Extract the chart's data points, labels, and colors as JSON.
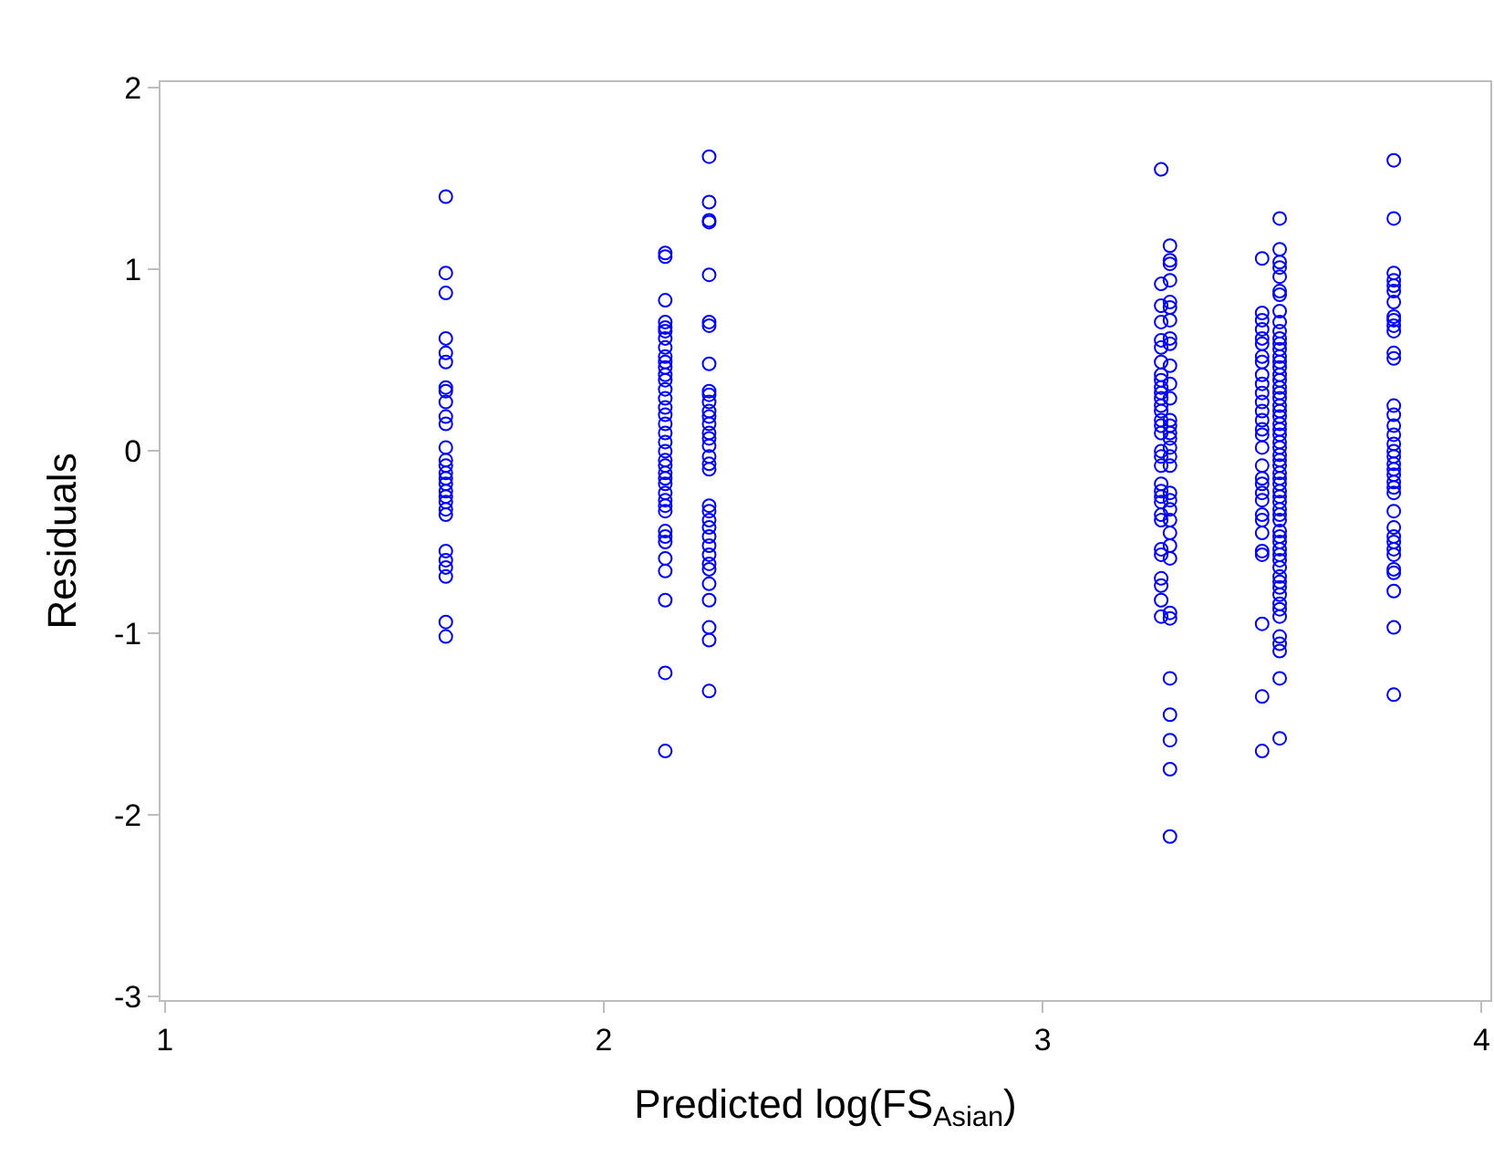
{
  "chart_data": {
    "type": "scatter",
    "xlabel": "Predicted log(FS$_{Asian}$)",
    "ylabel": "Residuals",
    "marker": "circle",
    "grid": false,
    "xlim": [
      0.99,
      4.02
    ],
    "xticks": [
      1,
      2,
      3,
      4
    ],
    "ylim": [
      -3.02,
      2.03
    ],
    "yticks": [
      -3,
      -2,
      -1,
      0,
      1,
      2
    ],
    "series": [
      {
        "color": "#0000ff",
        "x": [
          1.64,
          1.64,
          1.64,
          1.64,
          1.64,
          1.64,
          1.64,
          1.64,
          1.64,
          1.64,
          1.64,
          1.64,
          1.64,
          1.64,
          1.64,
          1.64,
          1.64,
          1.64,
          1.64,
          1.64,
          1.64,
          1.64,
          1.64,
          1.64,
          1.64,
          1.64,
          1.64,
          1.64,
          2.14,
          2.14,
          2.14,
          2.14,
          2.14,
          2.14,
          2.14,
          2.14,
          2.14,
          2.14,
          2.14,
          2.14,
          2.14,
          2.14,
          2.14,
          2.14,
          2.14,
          2.14,
          2.14,
          2.14,
          2.14,
          2.14,
          2.14,
          2.14,
          2.14,
          2.14,
          2.14,
          2.14,
          2.14,
          2.14,
          2.14,
          2.14,
          2.14,
          2.14,
          2.14,
          2.14,
          2.14,
          2.14,
          2.24,
          2.24,
          2.24,
          2.24,
          2.24,
          2.24,
          2.24,
          2.24,
          2.24,
          2.24,
          2.24,
          2.24,
          2.24,
          2.24,
          2.24,
          2.24,
          2.24,
          2.24,
          2.24,
          2.24,
          2.24,
          2.24,
          2.24,
          2.24,
          2.24,
          2.24,
          2.24,
          2.24,
          2.24,
          2.24,
          2.24,
          2.24,
          2.24,
          2.24,
          3.27,
          3.27,
          3.27,
          3.27,
          3.27,
          3.27,
          3.27,
          3.27,
          3.27,
          3.27,
          3.27,
          3.27,
          3.27,
          3.27,
          3.27,
          3.27,
          3.27,
          3.27,
          3.27,
          3.27,
          3.27,
          3.27,
          3.27,
          3.27,
          3.27,
          3.27,
          3.27,
          3.27,
          3.27,
          3.27,
          3.27,
          3.27,
          3.29,
          3.29,
          3.29,
          3.29,
          3.29,
          3.29,
          3.29,
          3.29,
          3.29,
          3.29,
          3.29,
          3.29,
          3.29,
          3.29,
          3.29,
          3.29,
          3.29,
          3.29,
          3.29,
          3.29,
          3.29,
          3.29,
          3.29,
          3.29,
          3.29,
          3.29,
          3.29,
          3.29,
          3.29,
          3.29,
          3.29,
          3.29,
          3.29,
          3.5,
          3.5,
          3.5,
          3.5,
          3.5,
          3.5,
          3.5,
          3.5,
          3.5,
          3.5,
          3.5,
          3.5,
          3.5,
          3.5,
          3.5,
          3.5,
          3.5,
          3.5,
          3.5,
          3.5,
          3.5,
          3.5,
          3.5,
          3.5,
          3.5,
          3.5,
          3.5,
          3.5,
          3.5,
          3.5,
          3.54,
          3.54,
          3.54,
          3.54,
          3.54,
          3.54,
          3.54,
          3.54,
          3.54,
          3.54,
          3.54,
          3.54,
          3.54,
          3.54,
          3.54,
          3.54,
          3.54,
          3.54,
          3.54,
          3.54,
          3.54,
          3.54,
          3.54,
          3.54,
          3.54,
          3.54,
          3.54,
          3.54,
          3.54,
          3.54,
          3.54,
          3.54,
          3.54,
          3.54,
          3.54,
          3.54,
          3.54,
          3.54,
          3.54,
          3.54,
          3.54,
          3.54,
          3.54,
          3.54,
          3.54,
          3.54,
          3.54,
          3.54,
          3.54,
          3.54,
          3.54,
          3.54,
          3.54,
          3.54,
          3.54,
          3.54,
          3.54,
          3.54,
          3.54,
          3.54,
          3.8,
          3.8,
          3.8,
          3.8,
          3.8,
          3.8,
          3.8,
          3.8,
          3.8,
          3.8,
          3.8,
          3.8,
          3.8,
          3.8,
          3.8,
          3.8,
          3.8,
          3.8,
          3.8,
          3.8,
          3.8,
          3.8,
          3.8,
          3.8,
          3.8,
          3.8,
          3.8,
          3.8,
          3.8,
          3.8,
          3.8,
          3.8,
          3.8,
          3.8,
          3.8,
          3.8,
          3.8
        ],
        "values": [
          1.4,
          0.98,
          0.87,
          0.62,
          0.54,
          0.49,
          0.35,
          0.33,
          0.27,
          0.19,
          0.15,
          0.02,
          -0.05,
          -0.08,
          -0.12,
          -0.15,
          -0.18,
          -0.22,
          -0.25,
          -0.28,
          -0.32,
          -0.35,
          -0.55,
          -0.6,
          -0.64,
          -0.69,
          -0.94,
          -1.02,
          1.09,
          1.07,
          0.83,
          0.71,
          0.68,
          0.66,
          0.62,
          0.57,
          0.52,
          0.49,
          0.46,
          0.42,
          0.39,
          0.34,
          0.29,
          0.24,
          0.2,
          0.15,
          0.1,
          0.05,
          0.0,
          -0.05,
          -0.08,
          -0.12,
          -0.15,
          -0.18,
          -0.23,
          -0.27,
          -0.3,
          -0.33,
          -0.44,
          -0.47,
          -0.5,
          -0.59,
          -0.66,
          -0.82,
          -1.22,
          -1.65,
          1.62,
          1.37,
          1.27,
          1.26,
          0.97,
          0.71,
          0.69,
          0.48,
          0.33,
          0.31,
          0.27,
          0.22,
          0.19,
          0.15,
          0.1,
          0.07,
          0.03,
          -0.03,
          -0.07,
          -0.1,
          -0.3,
          -0.33,
          -0.38,
          -0.42,
          -0.47,
          -0.52,
          -0.57,
          -0.62,
          -0.65,
          -0.73,
          -0.82,
          -0.97,
          -1.04,
          -1.32,
          1.55,
          0.92,
          0.8,
          0.71,
          0.61,
          0.57,
          0.49,
          0.42,
          0.39,
          0.35,
          0.32,
          0.29,
          0.25,
          0.22,
          0.17,
          0.14,
          0.1,
          0.0,
          -0.03,
          -0.08,
          -0.18,
          -0.22,
          -0.25,
          -0.28,
          -0.35,
          -0.38,
          -0.54,
          -0.57,
          -0.7,
          -0.74,
          -0.82,
          -0.91,
          1.13,
          1.05,
          1.03,
          0.94,
          0.82,
          0.79,
          0.72,
          0.62,
          0.59,
          0.47,
          0.37,
          0.29,
          0.17,
          0.14,
          0.1,
          0.07,
          0.02,
          -0.03,
          -0.08,
          -0.23,
          -0.27,
          -0.32,
          -0.38,
          -0.45,
          -0.52,
          -0.59,
          -0.89,
          -0.92,
          -1.25,
          -1.45,
          -1.59,
          -1.75,
          -2.12,
          1.06,
          0.76,
          0.72,
          0.67,
          0.62,
          0.59,
          0.52,
          0.49,
          0.42,
          0.37,
          0.32,
          0.27,
          0.22,
          0.17,
          0.12,
          0.09,
          0.02,
          -0.08,
          -0.15,
          -0.18,
          -0.23,
          -0.27,
          -0.35,
          -0.38,
          -0.45,
          -0.55,
          -0.57,
          -0.95,
          -1.35,
          -1.65,
          1.28,
          1.11,
          1.04,
          1.01,
          0.96,
          0.88,
          0.86,
          0.77,
          0.71,
          0.66,
          0.62,
          0.59,
          0.56,
          0.52,
          0.49,
          0.46,
          0.42,
          0.39,
          0.35,
          0.32,
          0.29,
          0.25,
          0.22,
          0.19,
          0.15,
          0.12,
          0.09,
          0.05,
          0.02,
          -0.02,
          -0.05,
          -0.08,
          -0.12,
          -0.15,
          -0.18,
          -0.22,
          -0.25,
          -0.28,
          -0.32,
          -0.35,
          -0.38,
          -0.44,
          -0.47,
          -0.5,
          -0.54,
          -0.57,
          -0.6,
          -0.64,
          -0.69,
          -0.72,
          -0.75,
          -0.79,
          -0.84,
          -0.87,
          -0.91,
          -1.02,
          -1.06,
          -1.1,
          -1.25,
          -1.58,
          1.6,
          1.28,
          0.98,
          0.94,
          0.91,
          0.88,
          0.82,
          0.74,
          0.72,
          0.69,
          0.66,
          0.54,
          0.51,
          0.25,
          0.2,
          0.14,
          0.09,
          0.04,
          0.0,
          -0.03,
          -0.07,
          -0.1,
          -0.13,
          -0.17,
          -0.2,
          -0.23,
          -0.33,
          -0.42,
          -0.47,
          -0.5,
          -0.54,
          -0.57,
          -0.65,
          -0.67,
          -0.77,
          -0.97,
          -1.34
        ]
      }
    ]
  }
}
